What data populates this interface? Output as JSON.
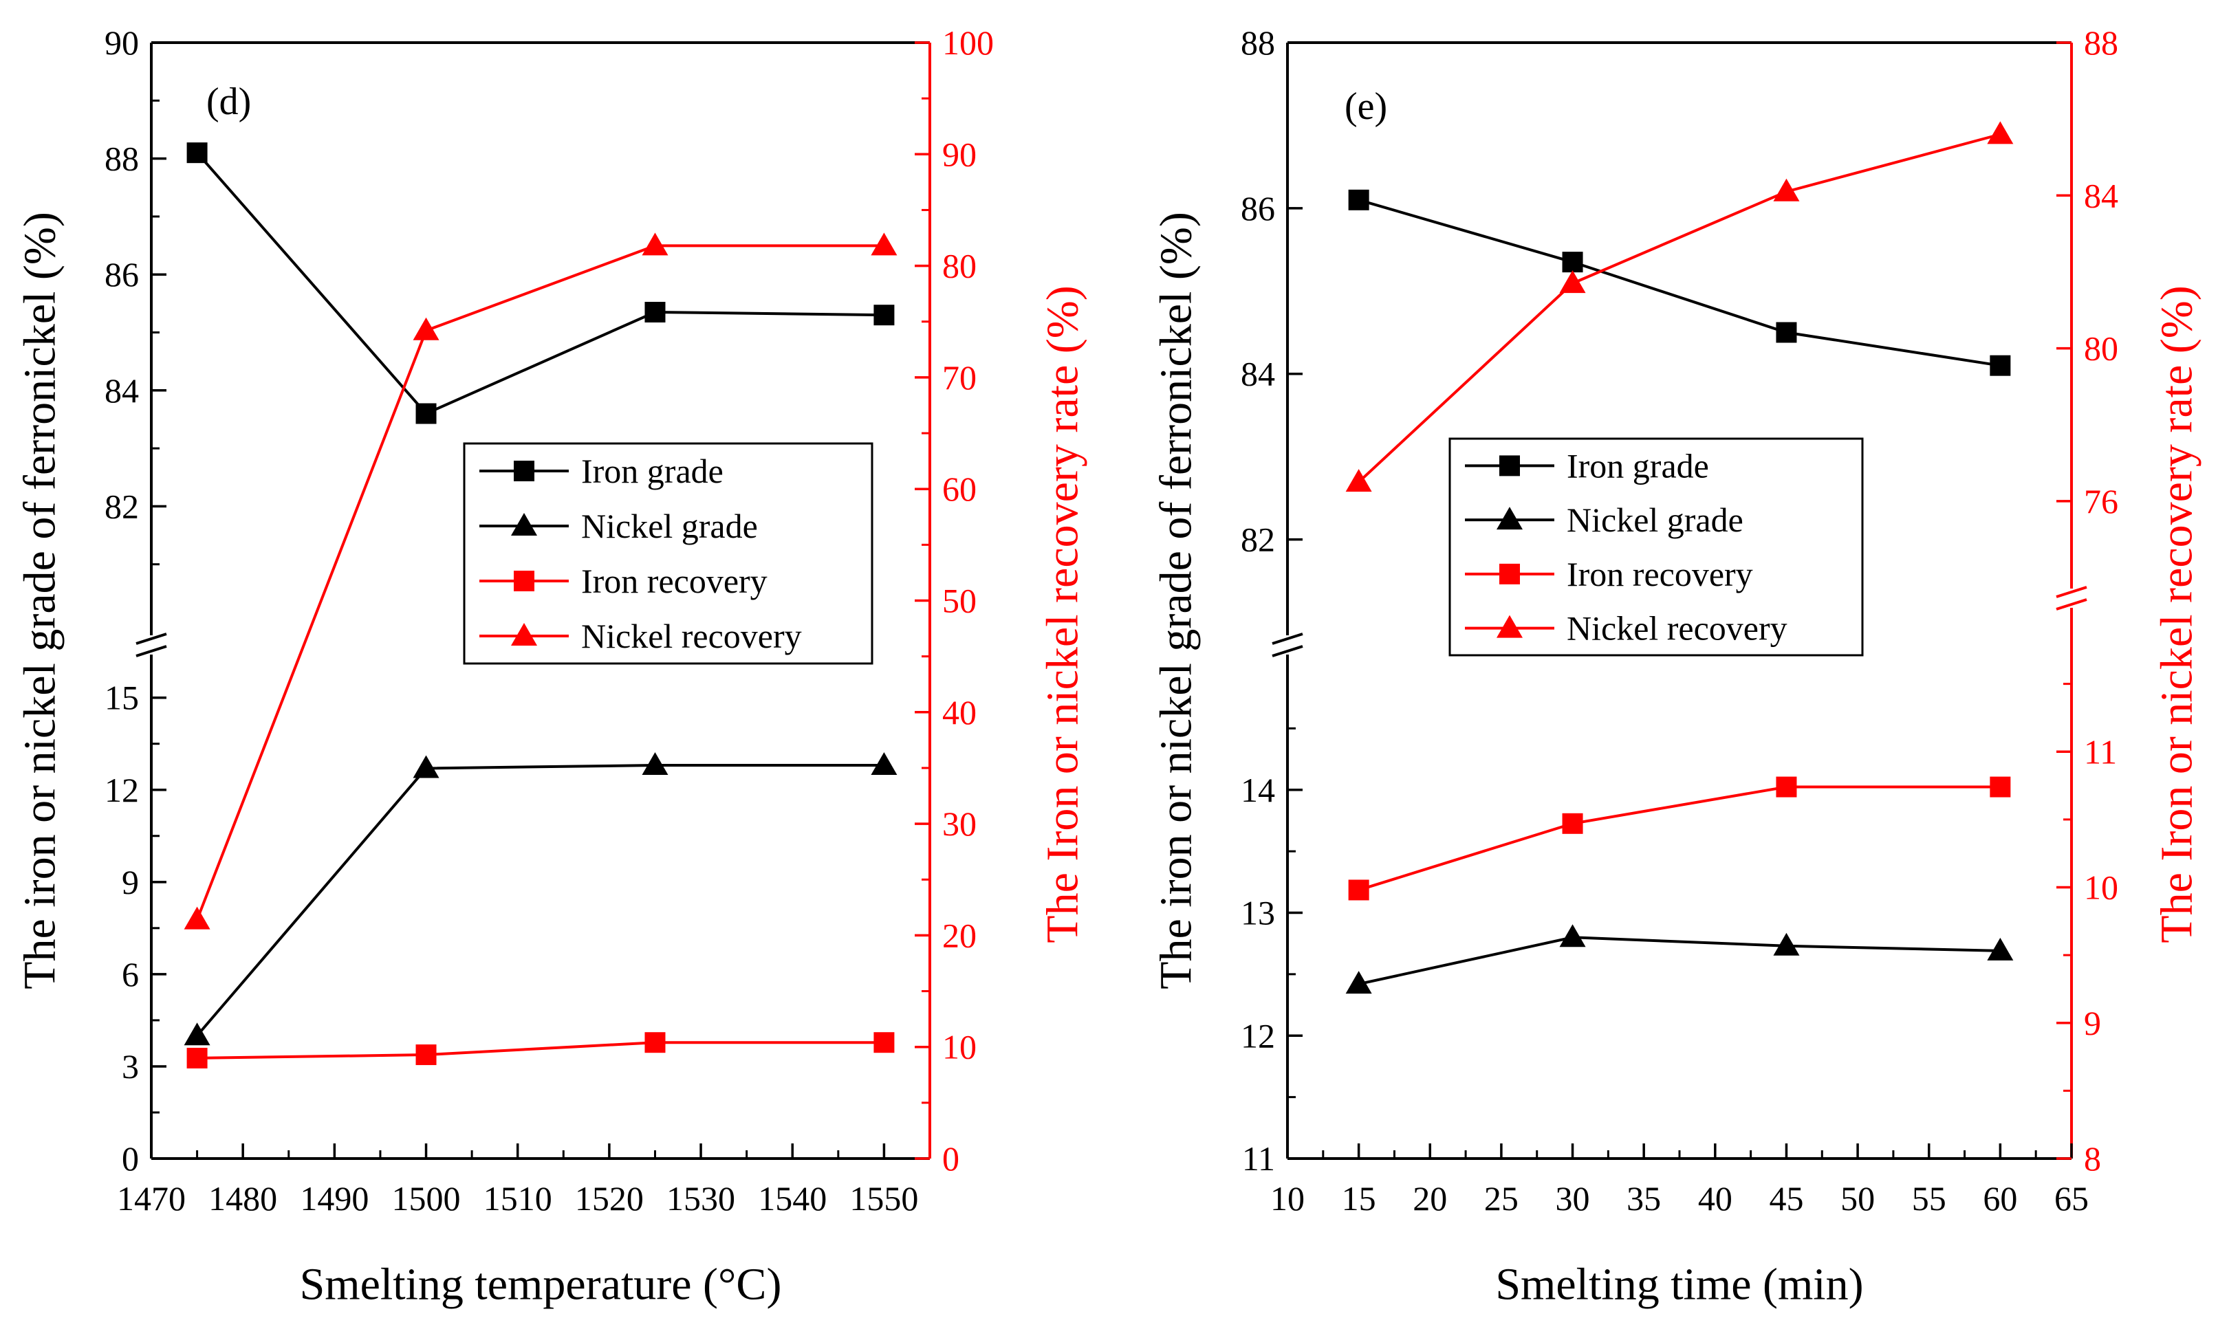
{
  "chart_data": [
    {
      "type": "line",
      "panel_label": "(d)",
      "xlabel": "Smelting temperature (°C)",
      "ylabel_left": "The iron or nickel grade of ferronickel (%)",
      "ylabel_right": "The Iron or nickel recovery rate (%)",
      "x_ticks": [
        1470,
        1480,
        1490,
        1500,
        1510,
        1520,
        1530,
        1540,
        1550
      ],
      "xlim": [
        1470,
        1555
      ],
      "left_axis_lower": {
        "range": [
          0,
          16
        ],
        "ticks": [
          0,
          3,
          6,
          9,
          12,
          15
        ]
      },
      "left_axis_upper": {
        "range": [
          80,
          90
        ],
        "ticks": [
          82,
          84,
          86,
          88,
          90
        ]
      },
      "right_axis": {
        "range": [
          0,
          100
        ],
        "ticks": [
          0,
          10,
          20,
          30,
          40,
          50,
          60,
          70,
          80,
          90,
          100
        ]
      },
      "x": [
        1475,
        1500,
        1525,
        1550
      ],
      "series": [
        {
          "name": "Iron grade",
          "axis": "left",
          "marker": "square",
          "color": "#000000",
          "values": [
            88.1,
            83.6,
            85.35,
            85.3
          ]
        },
        {
          "name": "Nickel grade",
          "axis": "left",
          "marker": "triangle",
          "color": "#000000",
          "values": [
            4.0,
            12.7,
            12.8,
            12.8
          ]
        },
        {
          "name": "Iron recovery",
          "axis": "right",
          "marker": "square",
          "color": "#ff0000",
          "values": [
            9.0,
            9.3,
            10.4,
            10.4
          ]
        },
        {
          "name": "Nickel recovery",
          "axis": "right",
          "marker": "triangle",
          "color": "#ff0000",
          "values": [
            21.4,
            74.2,
            81.8,
            81.8
          ]
        }
      ]
    },
    {
      "type": "line",
      "panel_label": "(e)",
      "xlabel": "Smelting time (min)",
      "ylabel_left": "The iron or nickel grade of ferronickel (%)",
      "ylabel_right": "The Iron or nickel recovery rate (%)",
      "x_ticks": [
        10,
        15,
        20,
        25,
        30,
        35,
        40,
        45,
        50,
        55,
        60,
        65
      ],
      "xlim": [
        10,
        65
      ],
      "left_axis_lower": {
        "range": [
          11,
          15
        ],
        "ticks": [
          11,
          12,
          13,
          14
        ]
      },
      "left_axis_upper": {
        "range": [
          81,
          88
        ],
        "ticks": [
          82,
          84,
          86,
          88
        ]
      },
      "right_axis_lower": {
        "range": [
          8,
          12
        ],
        "ticks": [
          8,
          9,
          10,
          11
        ]
      },
      "right_axis_upper": {
        "range": [
          74,
          88
        ],
        "ticks": [
          76,
          80,
          84,
          88
        ]
      },
      "x": [
        15,
        30,
        45,
        60
      ],
      "series": [
        {
          "name": "Iron grade",
          "axis": "left",
          "marker": "square",
          "color": "#000000",
          "values": [
            86.1,
            85.35,
            84.5,
            84.1
          ]
        },
        {
          "name": "Nickel grade",
          "axis": "left",
          "marker": "triangle",
          "color": "#000000",
          "values": [
            12.42,
            12.8,
            12.73,
            12.69
          ]
        },
        {
          "name": "Iron recovery",
          "axis": "right",
          "marker": "square",
          "color": "#ff0000",
          "values": [
            9.98,
            10.47,
            10.74,
            10.74
          ]
        },
        {
          "name": "Nickel recovery",
          "axis": "right",
          "marker": "triangle",
          "color": "#ff0000",
          "values": [
            76.5,
            81.7,
            84.1,
            85.6
          ]
        }
      ]
    }
  ]
}
